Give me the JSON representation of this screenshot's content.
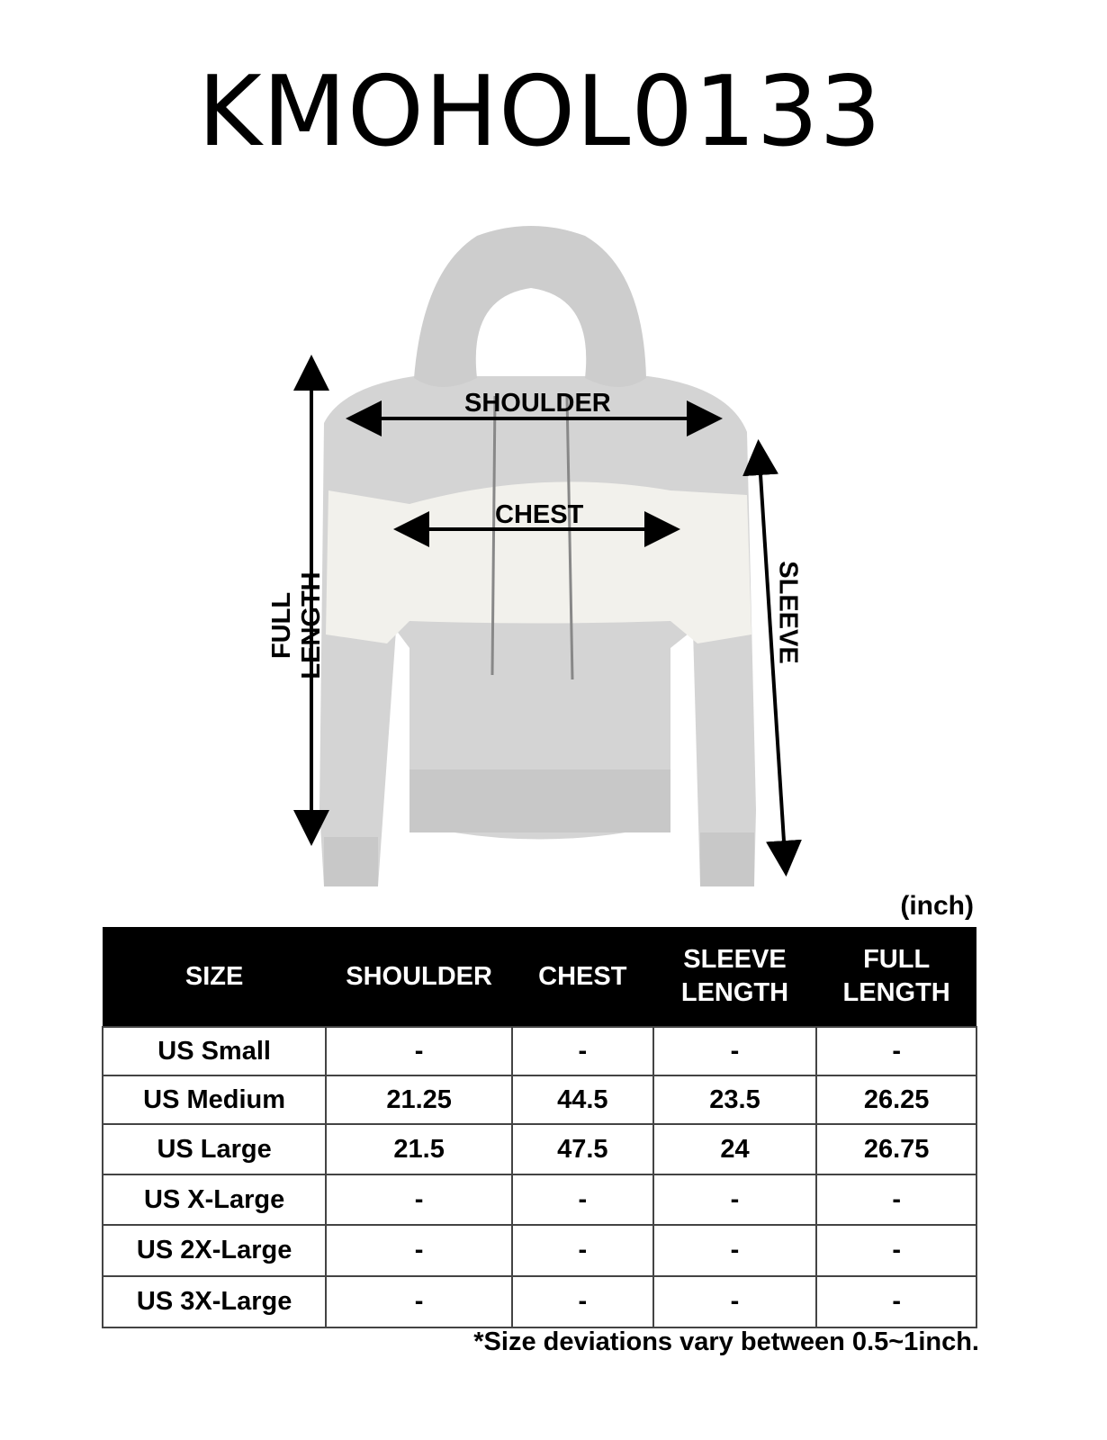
{
  "title": "KMOHOL0133",
  "diagram": {
    "labels": {
      "shoulder": "SHOULDER",
      "chest": "CHEST",
      "full_length": "FULL LENGTH",
      "sleeve": "SLEEVE"
    },
    "garment_colors": {
      "heather_grey": "#d4d4d4",
      "white_panel": "#f2f1ec"
    }
  },
  "unit": "(inch)",
  "table": {
    "headers": [
      "SIZE",
      "SHOULDER",
      "CHEST",
      "SLEEVE LENGTH",
      "FULL LENGTH"
    ],
    "header_lines": [
      [
        "SIZE"
      ],
      [
        "SHOULDER"
      ],
      [
        "CHEST"
      ],
      [
        "SLEEVE",
        "LENGTH"
      ],
      [
        "FULL",
        "LENGTH"
      ]
    ],
    "rows": [
      [
        "US Small",
        "-",
        "-",
        "-",
        "-"
      ],
      [
        "US Medium",
        "21.25",
        "44.5",
        "23.5",
        "26.25"
      ],
      [
        "US Large",
        "21.5",
        "47.5",
        "24",
        "26.75"
      ],
      [
        "US X-Large",
        "-",
        "-",
        "-",
        "-"
      ],
      [
        "US 2X-Large",
        "-",
        "-",
        "-",
        "-"
      ],
      [
        "US 3X-Large",
        "-",
        "-",
        "-",
        "-"
      ]
    ]
  },
  "note": "*Size deviations vary between 0.5~1inch."
}
